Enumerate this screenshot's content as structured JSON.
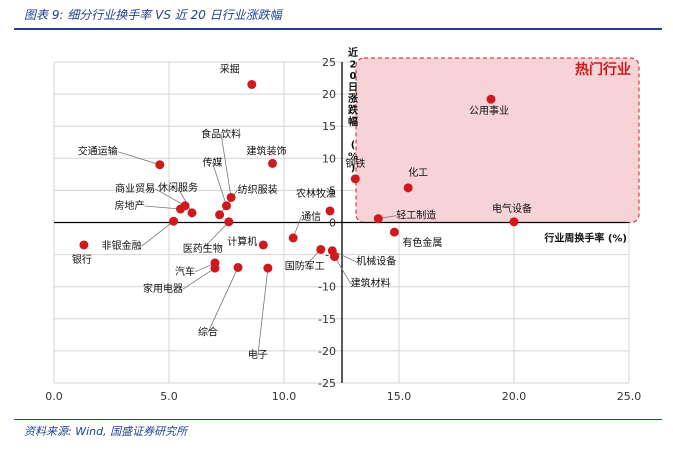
{
  "figure": {
    "title": "图表 9: 细分行业换手率 VS 近 20 日行业涨跌幅",
    "source": "资料来源: Wind, 国盛证券研究所"
  },
  "colors": {
    "brand": "#1f3f8f",
    "point": "#d0191c",
    "hot_fill": "#f6d3d6",
    "hot_border": "#d0191c",
    "hot_label": "#d0191c",
    "grid": "#d4d4d4"
  },
  "chart_data": {
    "type": "scatter",
    "xlabel": "行业周换手率 (%)",
    "ylabel": "近20日涨跌幅 (%)",
    "xlim": [
      0,
      25
    ],
    "ylim": [
      -25,
      25
    ],
    "xticks": [
      "0.0",
      "5.0",
      "10.0",
      "15.0",
      "20.0",
      "25.0"
    ],
    "yticks": [
      "25",
      "20",
      "15",
      "10",
      "5",
      "0",
      "-5",
      "-10",
      "-15",
      "-20",
      "-25"
    ],
    "grid": true,
    "annotation": {
      "label": "热门行业",
      "region": {
        "x": [
          13,
          25
        ],
        "y": [
          0,
          25
        ]
      }
    },
    "points": [
      {
        "label": "采掘",
        "x": 8.6,
        "y": 21.5
      },
      {
        "label": "公用事业",
        "x": 19.0,
        "y": 19.2
      },
      {
        "label": "交通运输",
        "x": 4.6,
        "y": 9.0
      },
      {
        "label": "建筑装饰",
        "x": 9.5,
        "y": 9.2
      },
      {
        "label": "钢铁",
        "x": 13.1,
        "y": 6.8
      },
      {
        "label": "化工",
        "x": 15.4,
        "y": 5.4
      },
      {
        "label": "食品饮料",
        "x": 7.7,
        "y": 3.9
      },
      {
        "label": "传媒",
        "x": 7.5,
        "y": 2.6
      },
      {
        "label": "商业贸易",
        "x": 5.7,
        "y": 2.6
      },
      {
        "label": "休闲服务",
        "x": 6.0,
        "y": 1.5
      },
      {
        "label": "房地产",
        "x": 5.5,
        "y": 2.1
      },
      {
        "label": "纺织服装",
        "x": 7.2,
        "y": 1.2
      },
      {
        "label": "农林牧渔",
        "x": 12.0,
        "y": 1.8
      },
      {
        "label": "轻工制造",
        "x": 14.1,
        "y": 0.6
      },
      {
        "label": "电气设备",
        "x": 20.0,
        "y": 0.1
      },
      {
        "label": "非银金融",
        "x": 5.2,
        "y": 0.2
      },
      {
        "label": "医药生物",
        "x": 7.6,
        "y": 0.1
      },
      {
        "label": "有色金属",
        "x": 14.8,
        "y": -1.5
      },
      {
        "label": "通信",
        "x": 10.4,
        "y": -2.4
      },
      {
        "label": "银行",
        "x": 1.3,
        "y": -3.5
      },
      {
        "label": "计算机",
        "x": 9.1,
        "y": -3.5
      },
      {
        "label": "国防军工",
        "x": 11.6,
        "y": -4.2
      },
      {
        "label": "机械设备",
        "x": 12.1,
        "y": -4.4
      },
      {
        "label": "建筑材料",
        "x": 12.2,
        "y": -5.3
      },
      {
        "label": "汽车",
        "x": 7.0,
        "y": -6.3
      },
      {
        "label": "家用电器",
        "x": 7.0,
        "y": -7.1
      },
      {
        "label": "综合",
        "x": 8.0,
        "y": -7.0
      },
      {
        "label": "电子",
        "x": 9.3,
        "y": -7.1
      }
    ]
  }
}
